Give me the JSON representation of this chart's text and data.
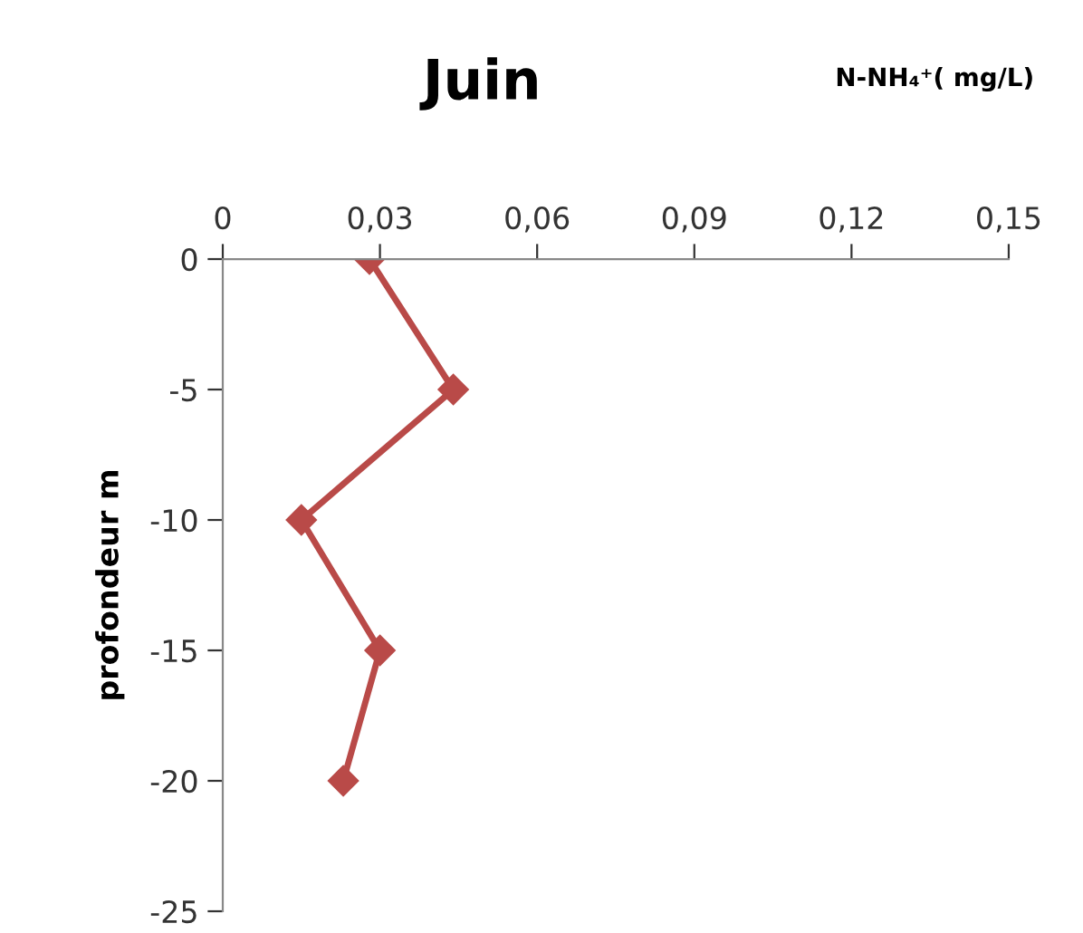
{
  "chart_data": {
    "type": "line",
    "title": "Juin",
    "xlabel": "N-NH₄⁺( mg/L)",
    "ylabel": "profondeur m",
    "series": [
      {
        "color": "#b94a48",
        "x": [
          0.028,
          0.044,
          0.015,
          0.03,
          0.023
        ],
        "values": [
          0,
          -5,
          -10,
          -15,
          -20
        ]
      }
    ],
    "xlim": [
      0,
      0.15
    ],
    "xticks": [
      0,
      {
        "value": 0.03,
        "label": "0,03"
      },
      {
        "value": 0.06,
        "label": "0,06"
      },
      {
        "value": 0.09,
        "label": "0,09"
      },
      {
        "value": 0.12,
        "label": "0,12"
      },
      {
        "value": 0.15,
        "label": "0,15"
      }
    ],
    "ylim": [
      -25,
      0
    ],
    "yticks": [
      0,
      -5,
      -10,
      -15,
      -20,
      -25
    ],
    "marker": "diamond",
    "line_style": "solid",
    "grid": false
  }
}
